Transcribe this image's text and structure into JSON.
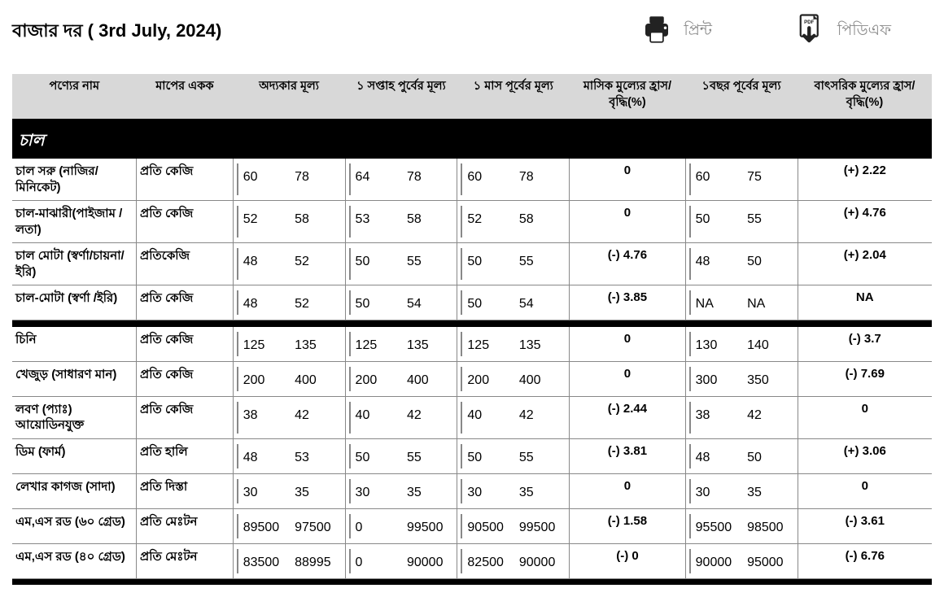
{
  "header": {
    "title": "বাজার দর ( 3rd July, 2024)",
    "print_label": "প্রিন্ট",
    "pdf_label": "পিডিএফ"
  },
  "colors": {
    "header_bg": "#d8d8d8",
    "black_bg": "#000000",
    "border": "#888888",
    "action_text": "#888888",
    "text": "#000000"
  },
  "typography": {
    "title_fontsize": 22,
    "header_fontsize": 14.5,
    "cell_fontsize": 15,
    "bold_cell_fontsize": 14.5,
    "category_fontsize": 20
  },
  "columns": [
    "পণ্যের নাম",
    "মাপের একক",
    "অদ্যকার মূল্য",
    "১ সপ্তাহ পুর্বের মূল্য",
    "১ মাস পূর্বের মূল্য",
    "মাসিক মুল্যের হ্রাস/বৃদ্ধি(%)",
    "১বছর পূর্বের মূল্য",
    "বাৎসরিক মুল্যের হ্রাস/বৃদ্ধি(%)"
  ],
  "sections": [
    {
      "category": "চাল",
      "show_category": true,
      "rows": [
        {
          "name": "চাল সরু (নাজির/মিনিকেট)",
          "unit": "প্রতি কেজি",
          "today": [
            "60",
            "78"
          ],
          "week": [
            "64",
            "78"
          ],
          "month": [
            "60",
            "78"
          ],
          "m_pct": "0",
          "year": [
            "60",
            "75"
          ],
          "y_pct": "(+) 2.22"
        },
        {
          "name": "চাল-মাঝারী(পাইজাম /লতা)",
          "unit": "প্রতি কেজি",
          "today": [
            "52",
            "58"
          ],
          "week": [
            "53",
            "58"
          ],
          "month": [
            "52",
            "58"
          ],
          "m_pct": "0",
          "year": [
            "50",
            "55"
          ],
          "y_pct": "(+) 4.76"
        },
        {
          "name": "চাল মোটা (স্বর্ণা/চায়না/ইরি)",
          "unit": "প্রতিকেজি",
          "today": [
            "48",
            "52"
          ],
          "week": [
            "50",
            "55"
          ],
          "month": [
            "50",
            "55"
          ],
          "m_pct": "(-) 4.76",
          "year": [
            "48",
            "50"
          ],
          "y_pct": "(+) 2.04"
        },
        {
          "name": "চাল-মোটা (স্বর্ণা /ইরি)",
          "unit": "প্রতি কেজি",
          "today": [
            "48",
            "52"
          ],
          "week": [
            "50",
            "54"
          ],
          "month": [
            "50",
            "54"
          ],
          "m_pct": "(-) 3.85",
          "year": [
            "NA",
            "NA"
          ],
          "y_pct": "NA"
        }
      ]
    },
    {
      "category": "",
      "show_category": false,
      "rows": [
        {
          "name": "চিনি",
          "unit": "প্রতি কেজি",
          "today": [
            "125",
            "135"
          ],
          "week": [
            "125",
            "135"
          ],
          "month": [
            "125",
            "135"
          ],
          "m_pct": "0",
          "year": [
            "130",
            "140"
          ],
          "y_pct": "(-) 3.7"
        },
        {
          "name": "খেজুড় (সাধারণ মান)",
          "unit": "প্রতি কেজি",
          "today": [
            "200",
            "400"
          ],
          "week": [
            "200",
            "400"
          ],
          "month": [
            "200",
            "400"
          ],
          "m_pct": "0",
          "year": [
            "300",
            "350"
          ],
          "y_pct": "(-) 7.69"
        },
        {
          "name": "লবণ (প্যাঃ) আয়োডিনযুক্ত",
          "unit": "প্রতি কেজি",
          "today": [
            "38",
            "42"
          ],
          "week": [
            "40",
            "42"
          ],
          "month": [
            "40",
            "42"
          ],
          "m_pct": "(-) 2.44",
          "year": [
            "38",
            "42"
          ],
          "y_pct": "0"
        },
        {
          "name": "ডিম (ফার্ম)",
          "unit": "প্রতি হালি",
          "today": [
            "48",
            "53"
          ],
          "week": [
            "50",
            "55"
          ],
          "month": [
            "50",
            "55"
          ],
          "m_pct": "(-) 3.81",
          "year": [
            "48",
            "50"
          ],
          "y_pct": "(+) 3.06"
        },
        {
          "name": "লেখার কাগজ (সাদা)",
          "unit": "প্রতি দিস্তা",
          "today": [
            "30",
            "35"
          ],
          "week": [
            "30",
            "35"
          ],
          "month": [
            "30",
            "35"
          ],
          "m_pct": "0",
          "year": [
            "30",
            "35"
          ],
          "y_pct": "0"
        },
        {
          "name": "এম,এস রড (৬০ গ্রেড)",
          "unit": "প্রতি মেঃটন",
          "today": [
            "89500",
            "97500"
          ],
          "week": [
            "0",
            "99500"
          ],
          "month": [
            "90500",
            "99500"
          ],
          "m_pct": "(-) 1.58",
          "year": [
            "95500",
            "98500"
          ],
          "y_pct": "(-) 3.61"
        },
        {
          "name": "এম,এস রড (৪০ গ্রেড)",
          "unit": "প্রতি মেঃটন",
          "today": [
            "83500",
            "88995"
          ],
          "week": [
            "0",
            "90000"
          ],
          "month": [
            "82500",
            "90000"
          ],
          "m_pct": "(-) 0",
          "year": [
            "90000",
            "95000"
          ],
          "y_pct": "(-) 6.76"
        }
      ]
    }
  ]
}
